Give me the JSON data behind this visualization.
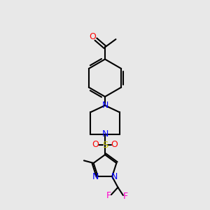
{
  "background_color": "#e8e8e8",
  "bond_color": "#000000",
  "N_color": "#0000ff",
  "O_color": "#ff0000",
  "S_color": "#cccc00",
  "F_color": "#ff00cc",
  "figsize": [
    3.0,
    3.0
  ],
  "dpi": 100,
  "xlim": [
    0,
    10
  ],
  "ylim": [
    0,
    10
  ]
}
